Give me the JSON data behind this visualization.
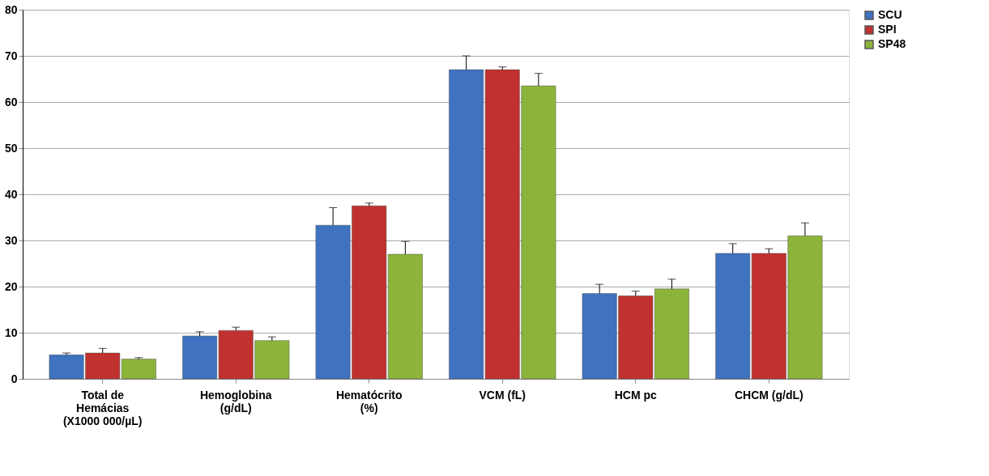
{
  "chart_data": {
    "type": "bar",
    "categories": [
      "Total de\nHemácias\n(X1000 000/µL)",
      "Hemoglobina\n(g/dL)",
      "Hematócrito\n(%)",
      "VCM (fL)",
      "HCM pc",
      "CHCM (g/dL)"
    ],
    "series": [
      {
        "name": "SCU",
        "color": "#3f72c0",
        "values": [
          5.2,
          9.3,
          33.3,
          67,
          18.5,
          27.2
        ],
        "errors": [
          [
            5.2,
            5.6
          ],
          [
            9.3,
            10.2
          ],
          [
            33.3,
            37.1
          ],
          [
            67,
            70
          ],
          [
            18.5,
            20.5
          ],
          [
            27.2,
            29.3
          ]
        ]
      },
      {
        "name": "SPI",
        "color": "#c0312f",
        "values": [
          5.6,
          10.5,
          37.5,
          67,
          18,
          27.2
        ],
        "errors": [
          [
            5.6,
            6.6
          ],
          [
            10.5,
            11.2
          ],
          [
            37.5,
            38.1
          ],
          [
            67,
            67.6
          ],
          [
            18,
            19
          ],
          [
            27.2,
            28.2
          ]
        ]
      },
      {
        "name": "SP48",
        "color": "#8cb43a",
        "values": [
          4.3,
          8.3,
          27,
          63.5,
          19.5,
          31
        ],
        "errors": [
          [
            4.3,
            4.6
          ],
          [
            8.3,
            9.1
          ],
          [
            27,
            29.8
          ],
          [
            63.5,
            66.2
          ],
          [
            19.5,
            21.6
          ],
          [
            31,
            33.8
          ]
        ]
      }
    ],
    "ylim": [
      0,
      80
    ],
    "yticks": [
      0,
      10,
      20,
      30,
      40,
      50,
      60,
      70,
      80
    ],
    "grid": "y",
    "legend": "right"
  }
}
